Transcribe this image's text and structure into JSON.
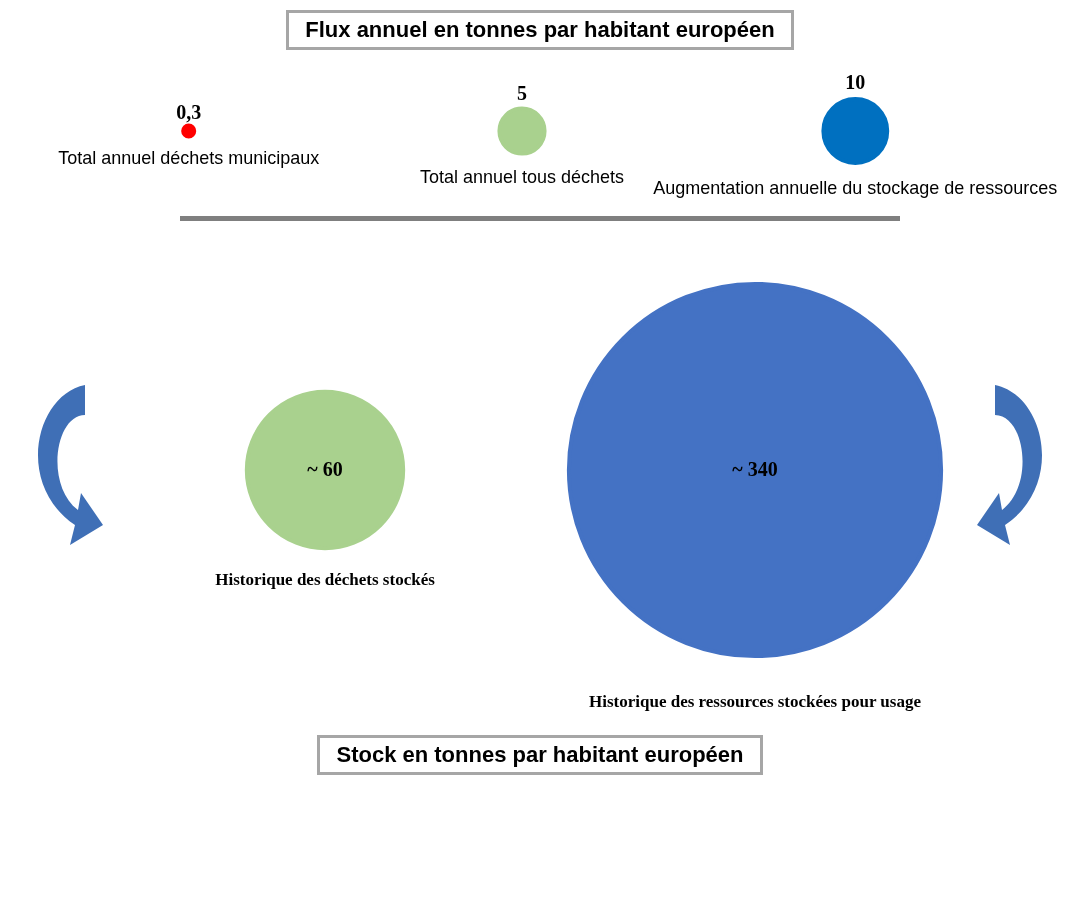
{
  "chart_data": [
    {
      "type": "other",
      "title": "Flux annuel en tonnes par habitant européen",
      "categories": [
        "Total annuel déchets municipaux",
        "Total annuel tous déchets",
        "Augmentation annuelle du stockage de ressources"
      ],
      "values": [
        0.3,
        5,
        10
      ],
      "value_labels": [
        "0,3",
        "5",
        "10"
      ],
      "colors": [
        "#ff0000",
        "#a9d18e",
        "#0070c0"
      ]
    },
    {
      "type": "other",
      "title": "Stock en tonnes par habitant européen",
      "categories": [
        "Historique des déchets stockés",
        "Historique des ressources stockées pour usage"
      ],
      "values": [
        60,
        340
      ],
      "value_labels": [
        "~ 60",
        "~ 340"
      ],
      "colors": [
        "#a9d18e",
        "#4472c4"
      ]
    }
  ]
}
